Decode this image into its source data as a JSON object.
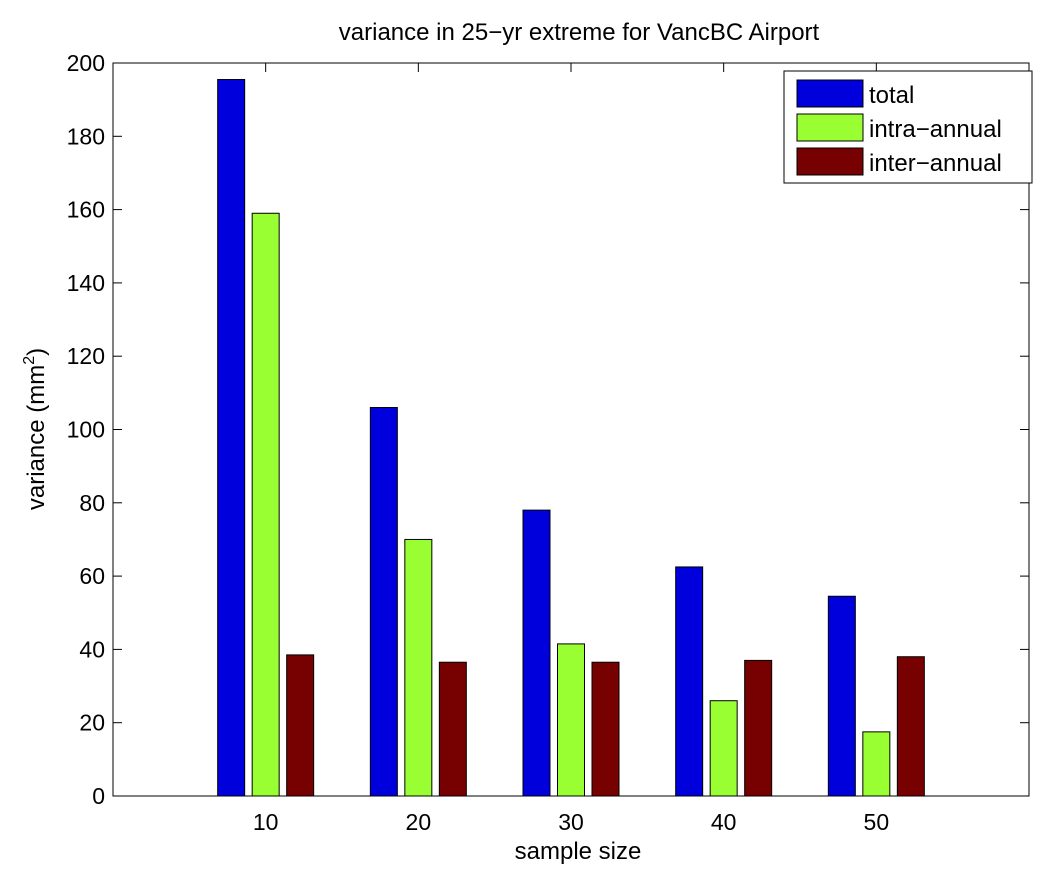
{
  "chart_data": {
    "type": "bar",
    "title": "variance in 25−yr extreme for VancBC Airport",
    "xlabel": "sample size",
    "ylabel_main": "variance (mm",
    "ylabel_sup": "2",
    "ylabel_end": ")",
    "categories": [
      "10",
      "20",
      "30",
      "40",
      "50"
    ],
    "ylim": [
      0,
      200
    ],
    "yticks": [
      "0",
      "20",
      "40",
      "60",
      "80",
      "100",
      "120",
      "140",
      "160",
      "180",
      "200"
    ],
    "xlim": [
      0,
      60
    ],
    "legend_position": "top-right",
    "series": [
      {
        "name": "total",
        "color": "#0000dd",
        "values": [
          195.5,
          106,
          78,
          62.5,
          54.5
        ]
      },
      {
        "name": "intra−annual",
        "color": "#99ff33",
        "values": [
          159,
          70,
          41.5,
          26,
          17.5
        ]
      },
      {
        "name": "inter−annual",
        "color": "#770000",
        "values": [
          38.5,
          36.5,
          36.5,
          37,
          38
        ]
      }
    ]
  }
}
